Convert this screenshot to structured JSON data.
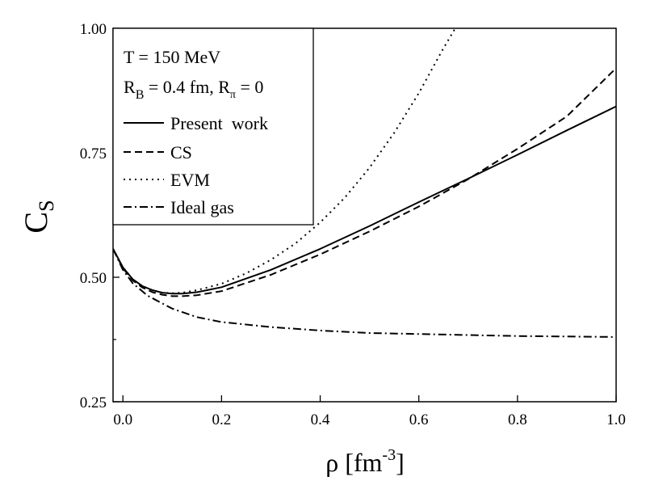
{
  "chart_data": {
    "type": "line",
    "title": "",
    "xlabel": {
      "main": "ρ [fm",
      "sup": "-3",
      "close": "]"
    },
    "ylabel": {
      "main": "C",
      "sub": "S"
    },
    "xlim": [
      -0.02,
      1.0
    ],
    "ylim": [
      0.25,
      1.0
    ],
    "x_ticks": [
      {
        "value": 0.0,
        "label": "0.0"
      },
      {
        "value": 0.2,
        "label": "0.2"
      },
      {
        "value": 0.4,
        "label": "0.4"
      },
      {
        "value": 0.6,
        "label": "0.6"
      },
      {
        "value": 0.8,
        "label": "0.8"
      },
      {
        "value": 1.0,
        "label": "1.0"
      }
    ],
    "y_ticks": [
      {
        "value": 0.25,
        "label": "0.25"
      },
      {
        "value": 0.5,
        "label": "0.50"
      },
      {
        "value": 0.75,
        "label": "0.75"
      },
      {
        "value": 1.0,
        "label": "1.00"
      }
    ],
    "legend": {
      "position": "top-left",
      "param_line1": "T = 150 MeV",
      "param_line2": {
        "a": "R",
        "a_sub": "B",
        "b": " = 0.4 fm, R",
        "b_sub": "π",
        "c": " = 0"
      }
    },
    "series": [
      {
        "name": "Present  work",
        "style": "solid",
        "x": [
          -0.02,
          0.0,
          0.02,
          0.04,
          0.06,
          0.08,
          0.1,
          0.12,
          0.15,
          0.2,
          0.3,
          0.4,
          0.5,
          0.6,
          0.7,
          0.8,
          0.9,
          1.0
        ],
        "y": [
          0.557,
          0.52,
          0.496,
          0.482,
          0.474,
          0.469,
          0.467,
          0.467,
          0.47,
          0.48,
          0.515,
          0.557,
          0.603,
          0.651,
          0.698,
          0.746,
          0.795,
          0.843
        ]
      },
      {
        "name": "CS",
        "style": "dashed",
        "x": [
          -0.02,
          0.0,
          0.02,
          0.04,
          0.06,
          0.08,
          0.1,
          0.12,
          0.15,
          0.2,
          0.3,
          0.4,
          0.5,
          0.6,
          0.7,
          0.8,
          0.9,
          1.0
        ],
        "y": [
          0.557,
          0.518,
          0.494,
          0.479,
          0.47,
          0.465,
          0.462,
          0.462,
          0.464,
          0.472,
          0.505,
          0.546,
          0.592,
          0.642,
          0.697,
          0.758,
          0.823,
          0.92
        ]
      },
      {
        "name": "EVM",
        "style": "dotted",
        "x": [
          -0.02,
          0.0,
          0.02,
          0.04,
          0.06,
          0.08,
          0.1,
          0.12,
          0.15,
          0.2,
          0.25,
          0.3,
          0.35,
          0.4,
          0.45,
          0.5,
          0.55,
          0.6,
          0.65,
          0.68
        ],
        "y": [
          0.557,
          0.52,
          0.496,
          0.482,
          0.474,
          0.469,
          0.468,
          0.469,
          0.474,
          0.487,
          0.508,
          0.535,
          0.568,
          0.61,
          0.66,
          0.72,
          0.79,
          0.87,
          0.96,
          1.01
        ]
      },
      {
        "name": "Ideal gas",
        "style": "dashdot",
        "x": [
          -0.02,
          0.0,
          0.02,
          0.05,
          0.1,
          0.15,
          0.2,
          0.3,
          0.4,
          0.5,
          0.6,
          0.7,
          0.8,
          0.9,
          1.0
        ],
        "y": [
          0.557,
          0.515,
          0.488,
          0.463,
          0.437,
          0.42,
          0.41,
          0.4,
          0.393,
          0.388,
          0.386,
          0.384,
          0.382,
          0.381,
          0.38
        ]
      }
    ]
  }
}
